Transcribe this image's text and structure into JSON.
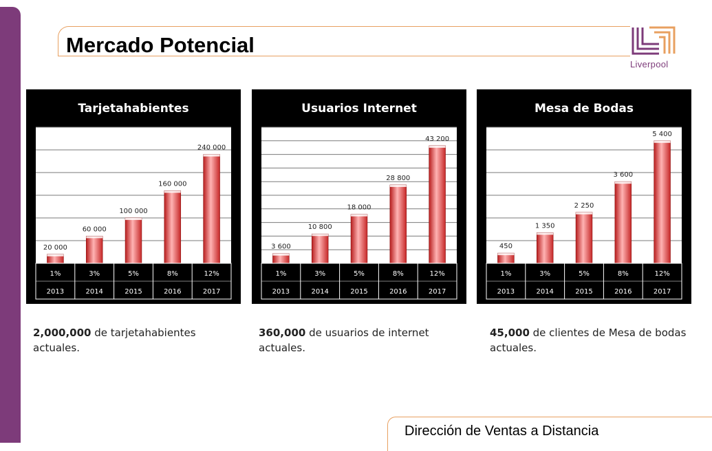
{
  "page": {
    "title": "Mercado Potencial",
    "footer": "Dirección de Ventas a Distancia",
    "logo_text": "Liverpool"
  },
  "colors": {
    "accent_purple": "#7d3b7a",
    "accent_orange": "#e8a060",
    "bar_red": "#e23a3a"
  },
  "chart_data": [
    {
      "type": "bar",
      "title": "Tarjetahabientes",
      "categories": [
        "2013",
        "2014",
        "2015",
        "2016",
        "2017"
      ],
      "percent_labels": [
        "1%",
        "3%",
        "5%",
        "8%",
        "12%"
      ],
      "values": [
        20000,
        60000,
        100000,
        160000,
        240000
      ],
      "value_labels": [
        "20 000",
        "60 000",
        "100 000",
        "160 000",
        "240 000"
      ],
      "ylim": [
        0,
        300000
      ],
      "grid": true,
      "gridlines": 6,
      "caption_bold": "2,000,000",
      "caption_rest": " de tarjetahabientes actuales."
    },
    {
      "type": "bar",
      "title": "Usuarios Internet",
      "categories": [
        "2013",
        "2014",
        "2015",
        "2016",
        "2017"
      ],
      "percent_labels": [
        "1%",
        "3%",
        "5%",
        "8%",
        "12%"
      ],
      "values": [
        3600,
        10800,
        18000,
        28800,
        43200
      ],
      "value_labels": [
        "3 600",
        "10 800",
        "18 000",
        "28 800",
        "43 200"
      ],
      "ylim": [
        0,
        50000
      ],
      "grid": true,
      "gridlines": 10,
      "caption_bold": "360,000",
      "caption_rest": " de usuarios de internet actuales."
    },
    {
      "type": "bar",
      "title": "Mesa de Bodas",
      "categories": [
        "2013",
        "2014",
        "2015",
        "2016",
        "2017"
      ],
      "percent_labels": [
        "1%",
        "3%",
        "5%",
        "8%",
        "12%"
      ],
      "values": [
        450,
        1350,
        2250,
        3600,
        5400
      ],
      "value_labels": [
        "450",
        "1 350",
        "2 250",
        "3 600",
        "5 400"
      ],
      "ylim": [
        0,
        6000
      ],
      "grid": true,
      "gridlines": 6,
      "caption_bold": "45,000",
      "caption_rest": " de clientes de Mesa de bodas actuales."
    }
  ]
}
